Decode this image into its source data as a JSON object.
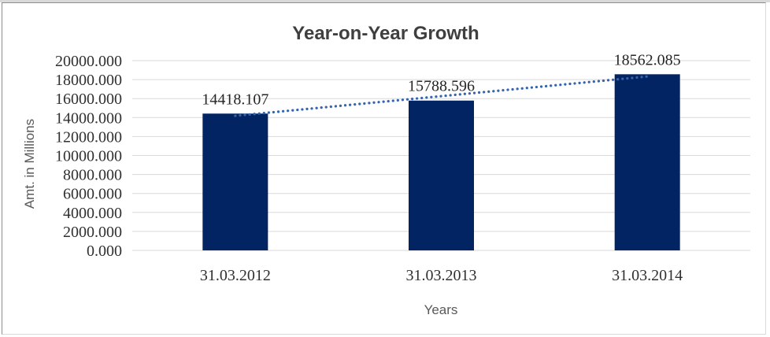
{
  "chart_data": {
    "type": "bar",
    "title": "Year-on-Year Growth",
    "xlabel": "Years",
    "ylabel": "Amt. in Millions",
    "categories": [
      "31.03.2012",
      "31.03.2013",
      "31.03.2014"
    ],
    "values": [
      14418.107,
      15788.596,
      18562.085
    ],
    "data_labels": [
      "14418.107",
      "15788.596",
      "18562.085"
    ],
    "ylim": [
      0,
      20000
    ],
    "ytick_step": 2000,
    "ytick_decimals": 3,
    "grid": true,
    "legend": false,
    "trendline": {
      "type": "linear",
      "style": "dotted"
    },
    "colors": {
      "bar": "#032463",
      "trendline": "#3465ae",
      "gridline": "#d9d9d9",
      "title_text": "#3f3f3f",
      "tick_text": "#303030",
      "axis_title_text": "#595959",
      "frame_border_dark": "#8c8c8c",
      "frame_border_light": "#d9d9d9",
      "background": "#ffffff"
    }
  }
}
